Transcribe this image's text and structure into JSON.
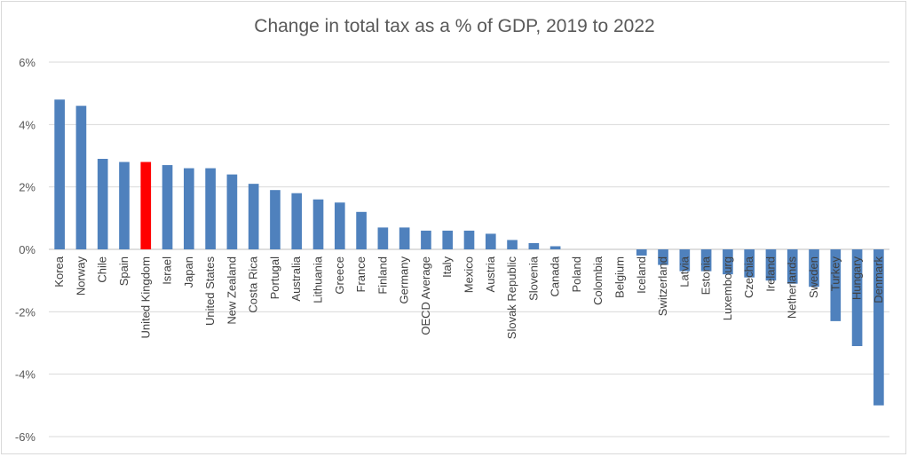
{
  "chart_data": {
    "type": "bar",
    "title": "Change in total tax as a % of GDP, 2019 to 2022",
    "xlabel": "",
    "ylabel": "",
    "ylim": [
      -6,
      6
    ],
    "y_ticks": [
      6,
      4,
      2,
      0,
      -2,
      -4,
      -6
    ],
    "y_tick_labels": [
      "6%",
      "4%",
      "2%",
      "0%",
      "-2%",
      "-4%",
      "-6%"
    ],
    "grid": true,
    "legend": "none",
    "bar_color": "#4f81bd",
    "highlight_color": "#ff0000",
    "highlight_category": "United Kingdom",
    "categories": [
      "Korea",
      "Norway",
      "Chile",
      "Spain",
      "United Kingdom",
      "Israel",
      "Japan",
      "United States",
      "New Zealand",
      "Costa Rica",
      "Portugal",
      "Australia",
      "Lithuania",
      "Greece",
      "France",
      "Finland",
      "Germany",
      "OECD Average",
      "Italy",
      "Mexico",
      "Austria",
      "Slovak Republic",
      "Slovenia",
      "Canada",
      "Poland",
      "Colombia",
      "Belgium",
      "Iceland",
      "Switzerland",
      "Latvia",
      "Estonia",
      "Luxembourg",
      "Czechia",
      "Ireland",
      "Netherlands",
      "Sweden",
      "Turkey",
      "Hungary",
      "Denmark"
    ],
    "values": [
      4.8,
      4.6,
      2.9,
      2.8,
      2.8,
      2.7,
      2.6,
      2.6,
      2.4,
      2.1,
      1.9,
      1.8,
      1.6,
      1.5,
      1.2,
      0.7,
      0.7,
      0.6,
      0.6,
      0.6,
      0.5,
      0.3,
      0.2,
      0.1,
      0.0,
      0.0,
      0.0,
      -0.2,
      -0.5,
      -0.7,
      -0.7,
      -0.8,
      -0.9,
      -1.0,
      -1.1,
      -1.2,
      -2.3,
      -3.1,
      -5.0
    ]
  }
}
